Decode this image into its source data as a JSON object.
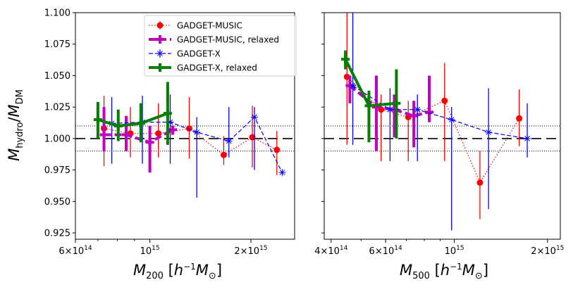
{
  "chart_data": [
    {
      "type": "errorbar",
      "panel": "left",
      "xlabel": "M_200 [h^-1 M_sun]",
      "ylabel": "M_hydro/M_DM",
      "xscale": "log",
      "xlim": [
        600000000000000.0,
        2700000000000000.0
      ],
      "ylim": [
        0.92,
        1.1
      ],
      "yticks": [
        0.925,
        0.95,
        0.975,
        1.0,
        1.025,
        1.05,
        1.075,
        1.1
      ],
      "ytick_labels": [
        "0.925",
        "0.950",
        "0.975",
        "1.000",
        "1.025",
        "1.050",
        "1.075",
        "1.100"
      ],
      "xticks": [
        {
          "value": 600000000000000.0,
          "mant": "6",
          "exp": "14"
        },
        {
          "value": 1000000000000000.0,
          "mant": "",
          "exp": "15"
        },
        {
          "value": 2000000000000000.0,
          "mant": "2",
          "exp": "15"
        }
      ],
      "reference_lines": [
        {
          "y": 1.0,
          "style": "dashed",
          "color": "#000000"
        },
        {
          "y": 1.01,
          "style": "dotted",
          "color": "#000000"
        },
        {
          "y": 0.99,
          "style": "dotted",
          "color": "#000000"
        }
      ],
      "series": [
        {
          "name": "GADGET-MUSIC",
          "color": "#ff0000",
          "linestyle": "dotted",
          "marker": "circle",
          "linewidth": 1,
          "x": [
            730000000000000.0,
            875000000000000.0,
            1060000000000000.0,
            1310000000000000.0,
            1660000000000000.0,
            2020000000000000.0,
            2390000000000000.0
          ],
          "y": [
            1.008,
            1.004,
            1.004,
            1.008,
            0.987,
            1.001,
            0.991
          ],
          "err": [
            [
              0.978,
              1.034
            ],
            [
              0.985,
              1.025
            ],
            [
              0.985,
              1.028
            ],
            [
              0.984,
              1.033
            ],
            [
              0.979,
              1.002
            ],
            [
              0.977,
              1.026
            ],
            [
              0.971,
              1.006
            ]
          ]
        },
        {
          "name": "GADGET-MUSIC, relaxed",
          "color": "#bf00bf",
          "linestyle": "dashed",
          "marker": "plus",
          "linewidth": 4,
          "x": [
            730000000000000.0,
            850000000000000.0,
            1000000000000000.0,
            1170000000000000.0
          ],
          "y": [
            1.003,
            1.003,
            0.997,
            1.007
          ],
          "err": [
            [
              0.99,
              1.025
            ],
            [
              0.99,
              1.018
            ],
            [
              0.973,
              1.01
            ],
            [
              1.003,
              1.01
            ]
          ]
        },
        {
          "name": "GADGET-X",
          "color": "#0000ff",
          "linestyle": "dashed",
          "marker": "x",
          "linewidth": 1,
          "x": [
            770000000000000.0,
            950000000000000.0,
            1150000000000000.0,
            1380000000000000.0,
            1720000000000000.0,
            2050000000000000.0,
            2480000000000000.0
          ],
          "y": [
            1.012,
            1.013,
            1.013,
            1.005,
            0.998,
            1.017,
            0.973
          ],
          "err": [
            [
              0.98,
              1.033
            ],
            [
              0.98,
              1.034
            ],
            [
              0.98,
              1.035
            ],
            [
              0.953,
              1.017
            ],
            [
              0.985,
              1.025
            ],
            [
              0.975,
              1.025
            ],
            [
              0.973,
              0.973
            ]
          ]
        },
        {
          "name": "GADGET-X, relaxed",
          "color": "#007f00",
          "linestyle": "solid",
          "marker": "plus",
          "linewidth": 4,
          "x": [
            700000000000000.0,
            805000000000000.0,
            940000000000000.0,
            1130000000000000.0
          ],
          "y": [
            1.015,
            1.01,
            1.012,
            1.02
          ],
          "err": [
            [
              1.0,
              1.029
            ],
            [
              0.998,
              1.023
            ],
            [
              0.997,
              1.028
            ],
            [
              0.995,
              1.045
            ]
          ]
        }
      ]
    },
    {
      "type": "errorbar",
      "panel": "right",
      "xlabel": "M_500 [h^-1 M_sun]",
      "xscale": "log",
      "xlim": [
        380000000000000.0,
        2200000000000000.0
      ],
      "ylim": [
        0.92,
        1.1
      ],
      "xticks": [
        {
          "value": 400000000000000.0,
          "mant": "4",
          "exp": "14"
        },
        {
          "value": 600000000000000.0,
          "mant": "6",
          "exp": "14"
        },
        {
          "value": 1000000000000000.0,
          "mant": "",
          "exp": "15"
        },
        {
          "value": 2000000000000000.0,
          "mant": "2",
          "exp": "15"
        }
      ],
      "reference_lines": [
        {
          "y": 1.0,
          "style": "dashed",
          "color": "#000000"
        },
        {
          "y": 1.01,
          "style": "dotted",
          "color": "#000000"
        },
        {
          "y": 0.99,
          "style": "dotted",
          "color": "#000000"
        }
      ],
      "series": [
        {
          "name": "GADGET-MUSIC",
          "color": "#ff0000",
          "linestyle": "dotted",
          "marker": "circle",
          "linewidth": 1,
          "x": [
            450000000000000.0,
            580000000000000.0,
            710000000000000.0,
            930000000000000.0,
            1210000000000000.0,
            1620000000000000.0
          ],
          "y": [
            1.049,
            1.023,
            1.017,
            1.03,
            0.965,
            1.016
          ],
          "err": [
            [
              0.995,
              1.1
            ],
            [
              0.982,
              1.035
            ],
            [
              0.982,
              1.03
            ],
            [
              0.982,
              1.06
            ],
            [
              0.936,
              0.99
            ],
            [
              0.994,
              1.039
            ]
          ]
        },
        {
          "name": "GADGET-MUSIC, relaxed",
          "color": "#bf00bf",
          "linestyle": "dashed",
          "marker": "plus",
          "linewidth": 4,
          "x": [
            460000000000000.0,
            560000000000000.0,
            640000000000000.0,
            740000000000000.0,
            830000000000000.0
          ],
          "y": [
            1.042,
            1.025,
            1.023,
            1.018,
            1.021
          ],
          "err": [
            [
              1.028,
              1.05
            ],
            [
              0.99,
              1.05
            ],
            [
              1.001,
              1.035
            ],
            [
              0.993,
              1.03
            ],
            [
              1.013,
              1.05
            ]
          ]
        },
        {
          "name": "GADGET-X",
          "color": "#0000ff",
          "linestyle": "dashed",
          "marker": "x",
          "linewidth": 1,
          "x": [
            470000000000000.0,
            620000000000000.0,
            760000000000000.0,
            980000000000000.0,
            1290000000000000.0,
            1720000000000000.0
          ],
          "y": [
            1.042,
            1.023,
            1.023,
            1.015,
            1.005,
            1.0
          ],
          "err": [
            [
              0.995,
              1.1
            ],
            [
              0.982,
              1.04
            ],
            [
              0.982,
              1.035
            ],
            [
              0.927,
              1.025
            ],
            [
              0.944,
              1.04
            ],
            [
              0.985,
              1.028
            ]
          ]
        },
        {
          "name": "GADGET-X, relaxed",
          "color": "#007f00",
          "linestyle": "solid",
          "marker": "plus",
          "linewidth": 4,
          "x": [
            445000000000000.0,
            530000000000000.0,
            650000000000000.0
          ],
          "y": [
            1.063,
            1.026,
            1.028
          ],
          "err": [
            [
              1.055,
              1.07
            ],
            [
              0.997,
              1.038
            ],
            [
              1.0,
              1.055
            ]
          ]
        }
      ]
    }
  ],
  "legend": {
    "placement": "top-center of left panel",
    "entries": [
      "GADGET-MUSIC",
      "GADGET-MUSIC, relaxed",
      "GADGET-X",
      "GADGET-X, relaxed"
    ]
  }
}
